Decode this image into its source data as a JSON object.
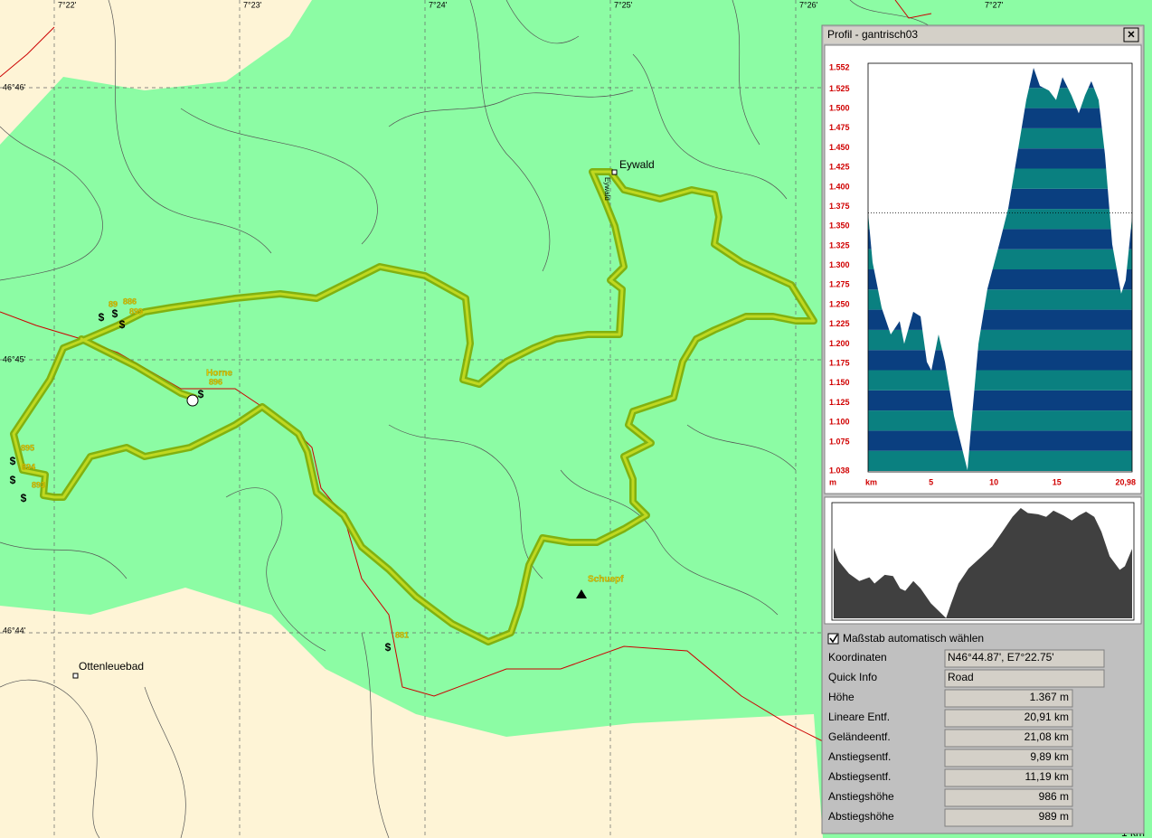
{
  "map": {
    "lon_labels": [
      "7°22'",
      "7°23'",
      "7°24'",
      "7°25'",
      "7°26'",
      "7°27'"
    ],
    "lat_labels": [
      "46°46'",
      "46°45'",
      "46°44'"
    ],
    "places": [
      "Eywald",
      "Ottenleuebad",
      "Schuepf",
      "Horne"
    ],
    "place_vertical": "Eywald",
    "waypoints": [
      "886",
      "899",
      "896",
      "895",
      "894",
      "893",
      "881",
      "89"
    ],
    "poi_symbol": "$",
    "scale_label": "1 km"
  },
  "profile": {
    "title": "Profil - gantrisch03",
    "close": "×",
    "y_unit": "m",
    "x_unit": "km",
    "ylim": [
      1038,
      1552
    ],
    "xlim": [
      0,
      20.98
    ],
    "yticks": [
      {
        "value": 1552,
        "label": "1.552"
      },
      {
        "value": 1525,
        "label": "1.525"
      },
      {
        "value": 1500,
        "label": "1.500"
      },
      {
        "value": 1475,
        "label": "1.475"
      },
      {
        "value": 1450,
        "label": "1.450"
      },
      {
        "value": 1425,
        "label": "1.425"
      },
      {
        "value": 1400,
        "label": "1.400"
      },
      {
        "value": 1375,
        "label": "1.375"
      },
      {
        "value": 1350,
        "label": "1.350"
      },
      {
        "value": 1325,
        "label": "1.325"
      },
      {
        "value": 1300,
        "label": "1.300"
      },
      {
        "value": 1275,
        "label": "1.275"
      },
      {
        "value": 1250,
        "label": "1.250"
      },
      {
        "value": 1225,
        "label": "1.225"
      },
      {
        "value": 1200,
        "label": "1.200"
      },
      {
        "value": 1175,
        "label": "1.175"
      },
      {
        "value": 1150,
        "label": "1.150"
      },
      {
        "value": 1125,
        "label": "1.125"
      },
      {
        "value": 1100,
        "label": "1.100"
      },
      {
        "value": 1075,
        "label": "1.075"
      },
      {
        "value": 1038,
        "label": "1.038"
      }
    ],
    "xticks": [
      5,
      10,
      15,
      {
        "value": 20.98,
        "label": "20,98"
      }
    ],
    "cursor_elevation": 1367,
    "distance_km": [
      0,
      0.36,
      1.08,
      1.8,
      2.51,
      2.87,
      3.59,
      4.17,
      4.67,
      5.03,
      5.6,
      6.11,
      6.83,
      7.54,
      7.9,
      8.26,
      8.77,
      9.48,
      10.42,
      11.14,
      11.86,
      12.57,
      13.15,
      13.65,
      14.37,
      14.94,
      15.45,
      16.16,
      16.74,
      17.24,
      17.74,
      18.32,
      18.82,
      19.4,
      20.11,
      20.47,
      20.98
    ],
    "elevation_m": [
      1367,
      1304,
      1246,
      1212,
      1229,
      1200,
      1241,
      1235,
      1177,
      1166,
      1212,
      1177,
      1108,
      1062,
      1039,
      1108,
      1200,
      1270,
      1327,
      1373,
      1442,
      1511,
      1552,
      1529,
      1523,
      1511,
      1540,
      1517,
      1494,
      1517,
      1535,
      1511,
      1442,
      1327,
      1264,
      1281,
      1362
    ]
  },
  "options": {
    "auto_scale": "Maßstab automatisch wählen"
  },
  "stats": [
    {
      "label": "Koordinaten",
      "value": "N46°44.87', E7°22.75'"
    },
    {
      "label": "Quick Info",
      "value": "Road"
    },
    {
      "label": "Höhe",
      "value": "1.367 m"
    },
    {
      "label": "Lineare Entf.",
      "value": "20,91 km"
    },
    {
      "label": "Geländeentf.",
      "value": "21,08 km"
    },
    {
      "label": "Anstiegsentf.",
      "value": "9,89 km"
    },
    {
      "label": "Abstiegsentf.",
      "value": "11,19 km"
    },
    {
      "label": "Anstiegshöhe",
      "value": "986 m"
    },
    {
      "label": "Abstiegshöhe",
      "value": "989 m"
    }
  ]
}
